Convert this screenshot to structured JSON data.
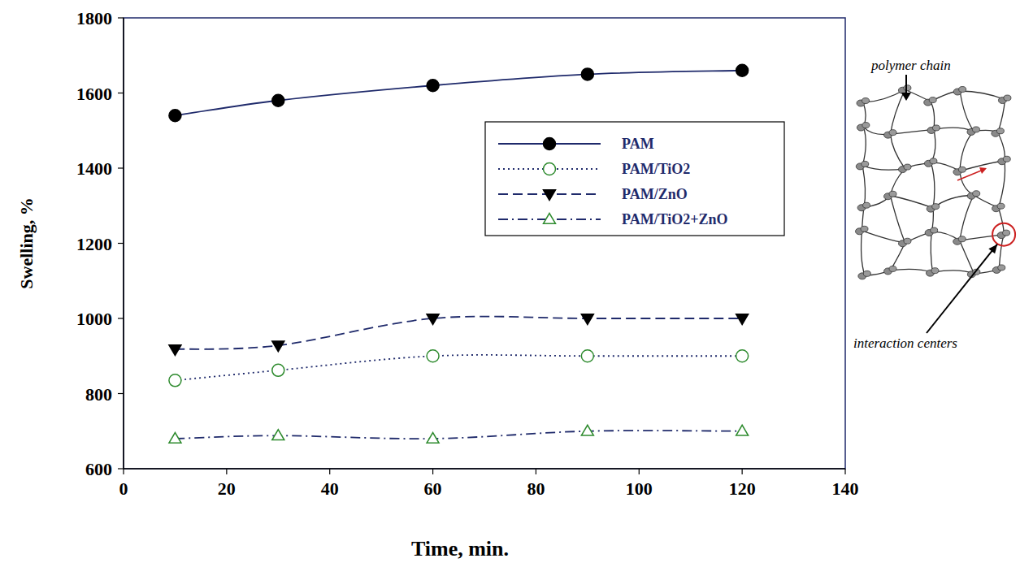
{
  "chart_data": {
    "type": "line",
    "x_label": "Time, min.",
    "y_label": "Swelling, %",
    "x": [
      10,
      30,
      60,
      90,
      120
    ],
    "series": [
      {
        "name": "PAM",
        "color": "#1f2a6b",
        "marker": "filled-circle",
        "line_style": "solid",
        "values": [
          1540,
          1580,
          1620,
          1650,
          1660
        ]
      },
      {
        "name": "PAM/TiO2",
        "color": "#1f2a6b",
        "marker": "open-circle",
        "line_style": "dotted",
        "values": [
          835,
          862,
          900,
          900,
          900
        ]
      },
      {
        "name": "PAM/ZnO",
        "color": "#1f2a6b",
        "marker": "filled-triangle-down",
        "line_style": "dashed",
        "values": [
          918,
          928,
          1000,
          1000,
          1000
        ]
      },
      {
        "name": "PAM/TiO2+ZnO",
        "color": "#1f2a6b",
        "marker": "open-triangle-up",
        "line_style": "dashdot",
        "values": [
          680,
          688,
          680,
          700,
          700
        ]
      }
    ],
    "xlim": [
      0,
      140
    ],
    "xticks": [
      0,
      20,
      40,
      60,
      80,
      100,
      120,
      140
    ],
    "ylim": [
      600,
      1800
    ],
    "yticks": [
      600,
      800,
      1000,
      1200,
      1400,
      1600,
      1800
    ],
    "grid": false,
    "legend": "top-right",
    "annotations": [
      "polymer chain",
      "interaction centers"
    ]
  }
}
